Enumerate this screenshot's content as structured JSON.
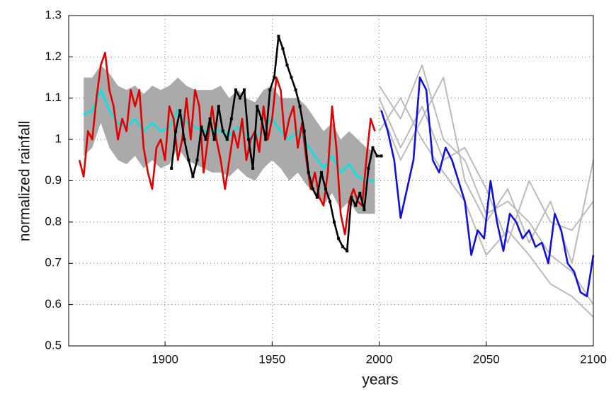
{
  "chart_data": {
    "type": "line",
    "xlabel": "years",
    "ylabel": "normalized rainfall",
    "xlim": [
      1855,
      2100
    ],
    "xticks": [
      1900,
      1950,
      2000,
      2050,
      2100
    ],
    "ylim": [
      0.5,
      1.3
    ],
    "yticks": [
      0.5,
      0.6,
      0.7,
      0.8,
      0.9,
      1,
      1.1,
      1.2,
      1.3
    ],
    "grid": true,
    "band": {
      "color": "#aaaaaa",
      "x": [
        1862,
        1866,
        1870,
        1874,
        1878,
        1882,
        1886,
        1890,
        1894,
        1898,
        1902,
        1906,
        1910,
        1914,
        1918,
        1922,
        1926,
        1930,
        1934,
        1938,
        1942,
        1946,
        1950,
        1954,
        1958,
        1962,
        1966,
        1970,
        1974,
        1978,
        1982,
        1986,
        1990,
        1994,
        1998
      ],
      "upper": [
        1.15,
        1.15,
        1.18,
        1.16,
        1.13,
        1.12,
        1.13,
        1.11,
        1.13,
        1.12,
        1.13,
        1.15,
        1.13,
        1.12,
        1.12,
        1.12,
        1.13,
        1.1,
        1.12,
        1.1,
        1.09,
        1.12,
        1.13,
        1.1,
        1.1,
        1.1,
        1.08,
        1.05,
        1.02,
        1.04,
        1.0,
        1.02,
        1.0,
        0.98,
        0.97
      ],
      "lower": [
        0.96,
        0.98,
        1.04,
        0.98,
        0.95,
        0.94,
        0.96,
        0.93,
        0.95,
        0.93,
        0.94,
        0.98,
        0.95,
        0.94,
        0.93,
        0.92,
        0.92,
        0.91,
        0.93,
        0.91,
        0.9,
        0.93,
        0.95,
        0.93,
        0.9,
        0.92,
        0.89,
        0.87,
        0.84,
        0.87,
        0.83,
        0.85,
        0.82,
        0.82,
        0.82
      ]
    },
    "series": [
      {
        "color": "#bbbbbb",
        "x": [
          2000,
          2010,
          2020,
          2030,
          2040,
          2050,
          2060,
          2070,
          2080,
          2090,
          2100
        ],
        "values": [
          1.13,
          1.05,
          1.18,
          1.0,
          0.95,
          0.82,
          0.85,
          0.8,
          0.72,
          0.68,
          0.6
        ]
      },
      {
        "color": "#bbbbbb",
        "x": [
          2000,
          2010,
          2020,
          2030,
          2040,
          2050,
          2060,
          2070,
          2080,
          2090,
          2100
        ],
        "values": [
          1.08,
          0.95,
          1.05,
          1.15,
          0.9,
          0.8,
          0.88,
          0.75,
          0.85,
          0.7,
          0.95
        ]
      },
      {
        "color": "#bbbbbb",
        "x": [
          2000,
          2010,
          2020,
          2030,
          2040,
          2050,
          2060,
          2070,
          2080,
          2090,
          2100
        ],
        "values": [
          1.02,
          1.1,
          1.0,
          0.92,
          0.85,
          0.72,
          0.78,
          0.72,
          0.65,
          0.62,
          0.57
        ]
      },
      {
        "color": "#bbbbbb",
        "x": [
          2000,
          2010,
          2020,
          2030,
          2040,
          2050,
          2060,
          2070,
          2080,
          2090,
          2100
        ],
        "values": [
          1.1,
          0.98,
          1.08,
          0.95,
          0.98,
          0.88,
          0.75,
          0.9,
          0.8,
          0.78,
          0.85
        ]
      },
      {
        "color": "#00e5e5",
        "x": [
          1862,
          1866,
          1870,
          1874,
          1878,
          1882,
          1886,
          1890,
          1894,
          1898,
          1902,
          1906,
          1910,
          1914,
          1918,
          1922,
          1926,
          1930,
          1934,
          1938,
          1942,
          1946,
          1950,
          1954,
          1958,
          1962,
          1966,
          1970,
          1974,
          1978,
          1982,
          1986,
          1990,
          1994,
          1998
        ],
        "values": [
          1.06,
          1.07,
          1.12,
          1.07,
          1.04,
          1.03,
          1.05,
          1.02,
          1.04,
          1.02,
          1.03,
          1.07,
          1.04,
          1.03,
          1.02,
          1.02,
          1.02,
          1.01,
          1.03,
          1.01,
          1.0,
          1.03,
          1.05,
          1.02,
          1.0,
          1.02,
          0.99,
          0.96,
          0.93,
          0.96,
          0.92,
          0.94,
          0.91,
          0.9,
          0.9
        ]
      },
      {
        "color": "#e00000",
        "x": [
          1860,
          1862,
          1864,
          1866,
          1868,
          1870,
          1872,
          1874,
          1876,
          1878,
          1880,
          1882,
          1884,
          1886,
          1888,
          1890,
          1892,
          1894,
          1896,
          1898,
          1900,
          1902,
          1904,
          1906,
          1908,
          1910,
          1912,
          1914,
          1916,
          1918,
          1920,
          1922,
          1924,
          1926,
          1928,
          1930,
          1932,
          1934,
          1936,
          1938,
          1940,
          1942,
          1944,
          1946,
          1948,
          1950,
          1952,
          1954,
          1956,
          1958,
          1960,
          1962,
          1964,
          1966,
          1968,
          1970,
          1972,
          1974,
          1976,
          1978,
          1980,
          1982,
          1984,
          1986,
          1988,
          1990,
          1992,
          1994,
          1996,
          1998
        ],
        "values": [
          0.95,
          0.91,
          1.02,
          1.0,
          1.1,
          1.18,
          1.21,
          1.12,
          1.08,
          1.0,
          1.05,
          1.02,
          1.12,
          1.08,
          1.12,
          0.98,
          0.92,
          0.88,
          0.98,
          1.0,
          0.95,
          1.08,
          1.05,
          0.95,
          1.0,
          1.1,
          1.0,
          1.12,
          1.08,
          0.92,
          1.0,
          1.08,
          1.0,
          0.95,
          0.88,
          0.95,
          1.02,
          0.98,
          1.05,
          0.95,
          1.0,
          1.02,
          0.97,
          1.08,
          1.0,
          1.05,
          1.15,
          1.12,
          1.0,
          1.05,
          1.08,
          0.98,
          1.04,
          0.95,
          0.88,
          0.92,
          0.86,
          0.84,
          0.92,
          1.08,
          0.98,
          0.82,
          0.77,
          0.85,
          0.88,
          0.85,
          0.84,
          0.95,
          1.05,
          1.02
        ]
      },
      {
        "color": "#000000",
        "marker": true,
        "x": [
          1903,
          1905,
          1907,
          1909,
          1911,
          1913,
          1915,
          1917,
          1919,
          1921,
          1923,
          1925,
          1927,
          1929,
          1931,
          1933,
          1935,
          1937,
          1939,
          1941,
          1943,
          1945,
          1947,
          1949,
          1951,
          1953,
          1955,
          1957,
          1959,
          1961,
          1963,
          1965,
          1967,
          1969,
          1971,
          1973,
          1975,
          1977,
          1979,
          1981,
          1983,
          1985,
          1987,
          1989,
          1991,
          1993,
          1995,
          1997,
          1999,
          2001
        ],
        "values": [
          0.93,
          1.02,
          1.07,
          1.0,
          0.95,
          0.91,
          0.95,
          1.03,
          1.0,
          1.05,
          1.0,
          1.08,
          1.02,
          1.0,
          1.05,
          1.12,
          1.1,
          1.12,
          1.0,
          0.93,
          1.08,
          1.05,
          1.0,
          1.12,
          1.15,
          1.25,
          1.22,
          1.18,
          1.15,
          1.12,
          1.08,
          1.02,
          0.92,
          0.88,
          0.86,
          0.92,
          0.88,
          0.85,
          0.8,
          0.76,
          0.74,
          0.73,
          0.86,
          0.84,
          0.87,
          0.83,
          0.93,
          0.98,
          0.96,
          0.96
        ]
      },
      {
        "color": "#1010dd",
        "x": [
          2001,
          2004,
          2007,
          2010,
          2013,
          2016,
          2019,
          2022,
          2025,
          2028,
          2031,
          2034,
          2037,
          2040,
          2043,
          2046,
          2049,
          2052,
          2055,
          2058,
          2061,
          2064,
          2067,
          2070,
          2073,
          2076,
          2079,
          2082,
          2085,
          2088,
          2091,
          2094,
          2097,
          2100
        ],
        "values": [
          1.07,
          1.02,
          0.95,
          0.81,
          0.88,
          0.95,
          1.15,
          1.12,
          0.95,
          0.92,
          0.98,
          0.95,
          0.9,
          0.85,
          0.72,
          0.78,
          0.76,
          0.9,
          0.8,
          0.73,
          0.82,
          0.8,
          0.76,
          0.78,
          0.74,
          0.75,
          0.7,
          0.82,
          0.78,
          0.7,
          0.68,
          0.63,
          0.62,
          0.72
        ]
      }
    ]
  }
}
